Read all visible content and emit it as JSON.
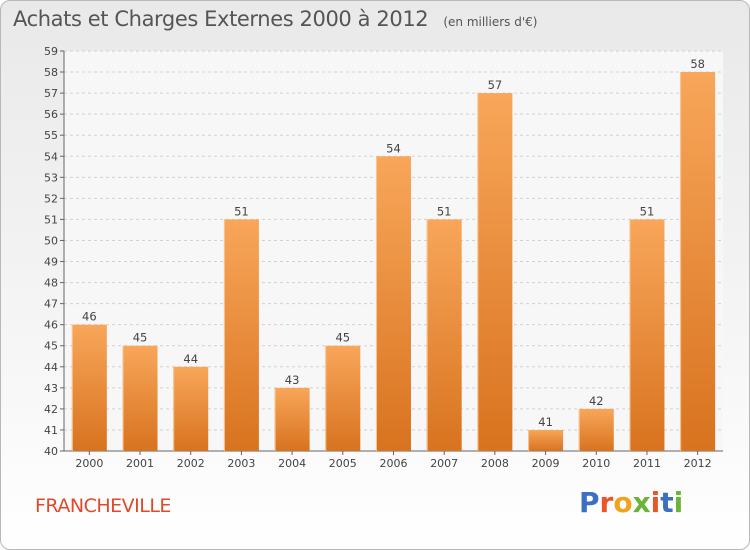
{
  "header": {
    "title": "Achats et Charges Externes 2000 à 2012",
    "unit": "(en milliers d'€)"
  },
  "footer": {
    "commune": "FRANCHEVILLE",
    "brand_letters": [
      "P",
      "r",
      "o",
      "x",
      "i",
      "t",
      "i"
    ]
  },
  "colors": {
    "bar_top": "#f8a65a",
    "bar_bottom": "#d8731f",
    "brand": [
      "#3a6fc4",
      "#e8562a",
      "#f0a41e",
      "#6bb43a",
      "#e8562a",
      "#3a6fc4",
      "#6bb43a"
    ],
    "commune": "#e04a2a"
  },
  "chart_data": {
    "type": "bar",
    "title": "Achats et Charges Externes 2000 à 2012",
    "subtitle": "(en milliers d'€)",
    "categories": [
      "2000",
      "2001",
      "2002",
      "2003",
      "2004",
      "2005",
      "2006",
      "2007",
      "2008",
      "2009",
      "2010",
      "2011",
      "2012"
    ],
    "values": [
      46,
      45,
      44,
      51,
      43,
      45,
      54,
      51,
      57,
      41,
      42,
      51,
      58
    ],
    "ylim": [
      40,
      59
    ],
    "yticks": [
      40,
      41,
      42,
      43,
      44,
      45,
      46,
      47,
      48,
      49,
      50,
      51,
      52,
      53,
      54,
      55,
      56,
      57,
      58,
      59
    ],
    "grid": true,
    "data_labels": true
  }
}
